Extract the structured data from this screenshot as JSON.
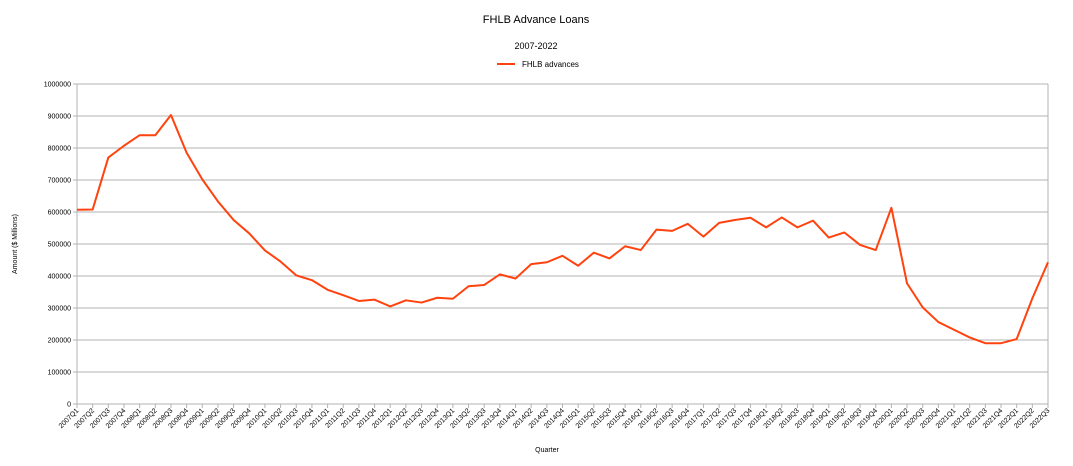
{
  "chart_data": {
    "type": "line",
    "title": "FHLB Advance Loans",
    "subtitle": "2007-2022",
    "xlabel": "Quarter",
    "ylabel": "Amount ($ Millions)",
    "ylim": [
      0,
      1000000
    ],
    "yticks": [
      0,
      100000,
      200000,
      300000,
      400000,
      500000,
      600000,
      700000,
      800000,
      900000,
      1000000
    ],
    "grid": true,
    "legend_position": "top-center",
    "series_color": "#ff420e",
    "categories": [
      "2007Q1",
      "2007Q2",
      "2007Q3",
      "2007Q4",
      "2008Q1",
      "2008Q2",
      "2008Q3",
      "2008Q4",
      "2009Q1",
      "2009Q2",
      "2009Q3",
      "2009Q4",
      "2010Q1",
      "2010Q2",
      "2010Q3",
      "2010Q4",
      "2011Q1",
      "2011Q2",
      "2011Q3",
      "2011Q4",
      "2012Q1",
      "2012Q2",
      "2012Q3",
      "2012Q4",
      "2013Q1",
      "2013Q2",
      "2013Q3",
      "2013Q4",
      "2014Q1",
      "2014Q2",
      "2014Q3",
      "2014Q4",
      "2015Q1",
      "2015Q2",
      "2015Q3",
      "2015Q4",
      "2016Q1",
      "2016Q2",
      "2016Q3",
      "2016Q4",
      "2017Q1",
      "2017Q2",
      "2017Q3",
      "2017Q4",
      "2018Q1",
      "2018Q2",
      "2018Q3",
      "2018Q4",
      "2019Q1",
      "2019Q2",
      "2019Q3",
      "2019Q4",
      "2020Q1",
      "2020Q2",
      "2020Q3",
      "2020Q4",
      "2021Q1",
      "2021Q2",
      "2021Q3",
      "2021Q4",
      "2022Q1",
      "2022Q2",
      "2022Q3"
    ],
    "series": [
      {
        "name": "FHLB advances",
        "values": [
          607000,
          608000,
          770000,
          807000,
          840000,
          840000,
          903000,
          785000,
          702000,
          633000,
          575000,
          533000,
          480000,
          445000,
          402000,
          387000,
          357000,
          340000,
          322000,
          326000,
          305000,
          324000,
          317000,
          332000,
          329000,
          368000,
          372000,
          405000,
          392000,
          437000,
          443000,
          463000,
          432000,
          473000,
          455000,
          493000,
          481000,
          545000,
          541000,
          563000,
          523000,
          566000,
          575000,
          582000,
          552000,
          583000,
          552000,
          573000,
          520000,
          536000,
          497000,
          481000,
          613000,
          377000,
          302000,
          256000,
          232000,
          208000,
          190000,
          190000,
          203000,
          330000,
          443000
        ]
      }
    ]
  }
}
